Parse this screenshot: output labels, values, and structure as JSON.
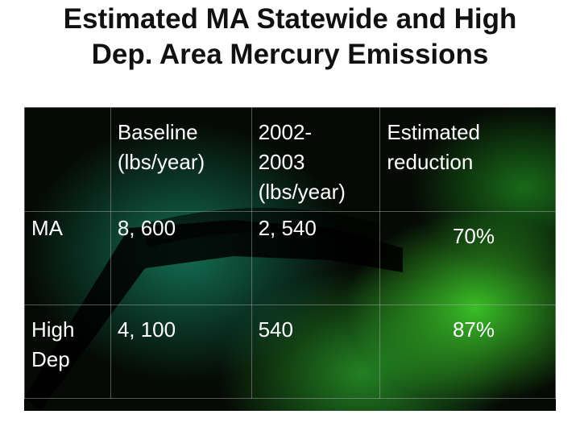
{
  "header": {
    "title": "Estimated MA Statewide and High Dep. Area Mercury Emissions"
  },
  "table": {
    "columns": [
      [
        "Baseline",
        "(lbs/year)"
      ],
      [
        "2002-",
        "2003",
        "(lbs/year)"
      ],
      [
        "Estimated",
        "reduction"
      ]
    ],
    "rows": [
      [
        "MA",
        "8, 600",
        "2, 540",
        "70%"
      ],
      [
        "High Dep",
        "4, 100",
        "540",
        "87%"
      ]
    ]
  }
}
